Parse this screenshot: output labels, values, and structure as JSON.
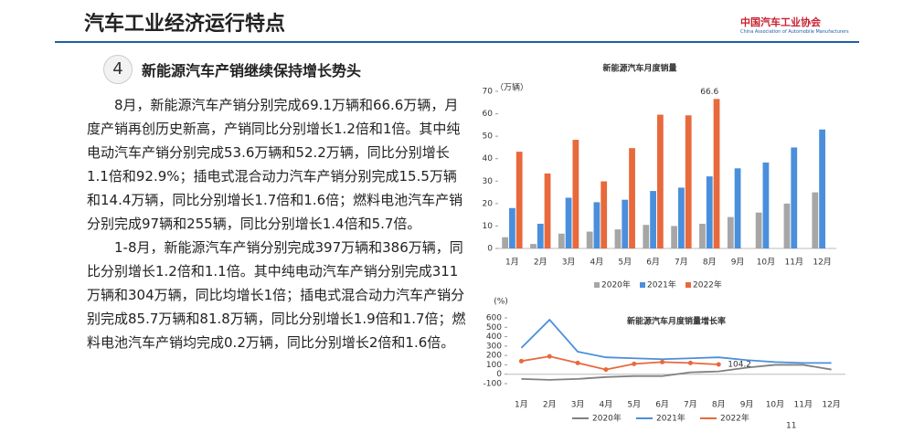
{
  "header": {
    "title": "汽车工业经济运行特点",
    "logo": "中国汽车工业协会",
    "logo_en": "China Association of Automobile Manufacturers"
  },
  "section": {
    "number": "4",
    "title": "新能源汽车产销继续保持增长势头"
  },
  "paragraphs": [
    "8月，新能源汽车产销分别完成69.1万辆和66.6万辆，月度产销再创历史新高，产销同比分别增长1.2倍和1倍。其中纯电动汽车产销分别完成53.6万辆和52.2万辆，同比分别增长1.1倍和92.9%；插电式混合动力汽车产销分别完成15.5万辆和14.4万辆，同比分别增长1.7倍和1.6倍；燃料电池汽车产销分别完成97辆和255辆，同比分别增长1.4倍和5.7倍。",
    "1-8月，新能源汽车产销分别完成397万辆和386万辆，同比分别增长1.2倍和1.1倍。其中纯电动汽车产销分别完成311万辆和304万辆，同比均增长1倍；插电式混合动力汽车产销分别完成85.7万辆和81.8万辆，同比分别增长1.9倍和1.7倍；燃料电池汽车产销均完成0.2万辆，同比分别增长2倍和1.6倍。"
  ],
  "page_number": "11",
  "chart_data": [
    {
      "type": "bar",
      "title": "新能源汽车月度销量",
      "y_label": "（万辆）",
      "categories": [
        "1月",
        "2月",
        "3月",
        "4月",
        "5月",
        "6月",
        "7月",
        "8月",
        "9月",
        "10月",
        "11月",
        "12月"
      ],
      "series": [
        {
          "name": "2020年",
          "color": "#a6a6a6",
          "values": [
            5,
            2,
            6.6,
            7.5,
            8.5,
            10.5,
            10,
            11,
            14,
            16,
            20,
            25
          ]
        },
        {
          "name": "2021年",
          "color": "#4a8fdc",
          "values": [
            18,
            11,
            22.6,
            20.6,
            21.7,
            25.6,
            27.1,
            32.1,
            35.7,
            38.3,
            45,
            53
          ]
        },
        {
          "name": "2022年",
          "color": "#e8693c",
          "values": [
            43.1,
            33.4,
            48.4,
            29.9,
            44.7,
            59.6,
            59.3,
            66.6,
            null,
            null,
            null,
            null
          ]
        }
      ],
      "ylim": [
        0,
        70
      ],
      "yticks": [
        0,
        10,
        20,
        30,
        40,
        50,
        60,
        70
      ],
      "annotations": [
        {
          "text": "66.6"
        }
      ]
    },
    {
      "type": "line",
      "title": "新能源汽车月度销量增长率",
      "y_label": "(%)",
      "categories": [
        "1月",
        "2月",
        "3月",
        "4月",
        "5月",
        "6月",
        "7月",
        "8月",
        "9月",
        "10月",
        "11月",
        "12月"
      ],
      "series": [
        {
          "name": "2020年",
          "color": "#808080",
          "values": [
            -50,
            -60,
            -50,
            -30,
            -20,
            -20,
            20,
            30,
            70,
            100,
            100,
            50
          ]
        },
        {
          "name": "2021年",
          "color": "#4a8fdc",
          "values": [
            280,
            580,
            240,
            180,
            170,
            160,
            170,
            180,
            150,
            130,
            120,
            120
          ]
        },
        {
          "name": "2022年",
          "color": "#e8693c",
          "values": [
            140,
            190,
            120,
            50,
            110,
            130,
            120,
            104.2,
            null,
            null,
            null,
            null
          ]
        }
      ],
      "ylim": [
        -100,
        600
      ],
      "yticks": [
        -100,
        0,
        100,
        200,
        300,
        400,
        500,
        600
      ],
      "annotations": [
        {
          "text": "104.2"
        }
      ]
    }
  ]
}
